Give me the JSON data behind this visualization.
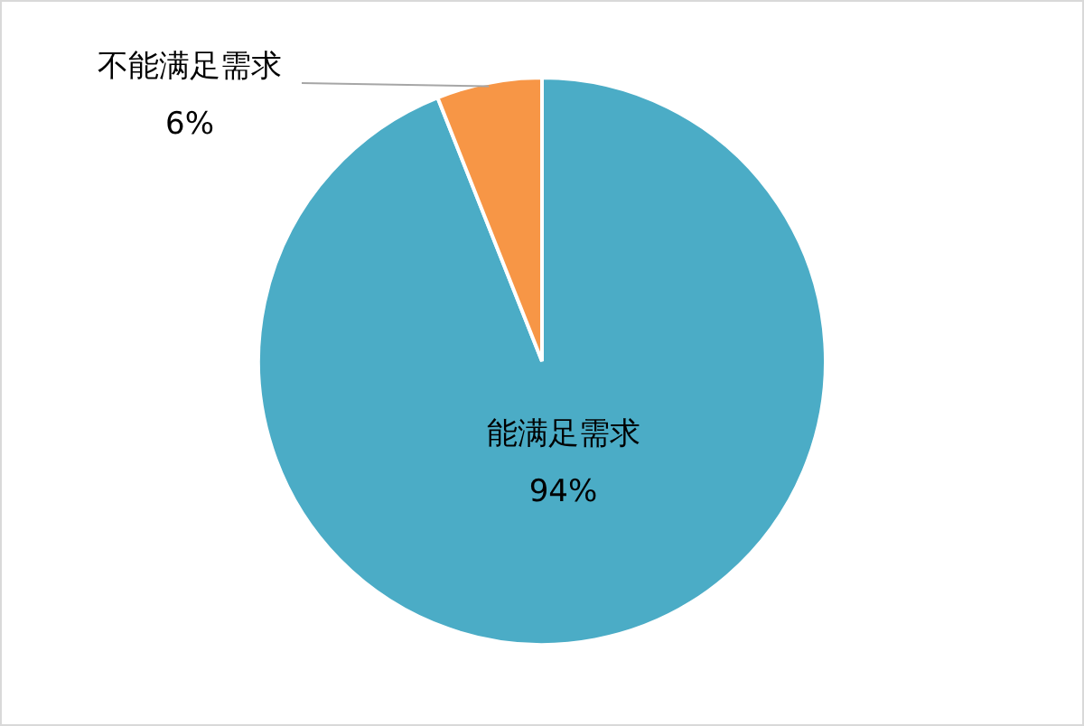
{
  "chart_data": {
    "type": "pie",
    "categories": [
      "能满足需求",
      "不能满足需求"
    ],
    "values": [
      94,
      6
    ],
    "value_labels": [
      "94%",
      "6%"
    ],
    "colors": [
      "#4bacc6",
      "#f79646"
    ]
  }
}
